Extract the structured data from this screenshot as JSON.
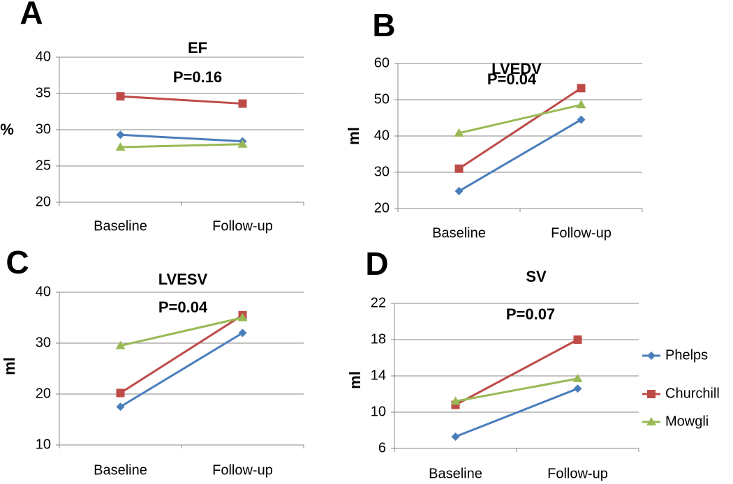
{
  "chart_data": [
    {
      "type": "line",
      "panel": "A",
      "title": "EF",
      "annotation": "P=0.16",
      "ylabel": "%",
      "categories": [
        "Baseline",
        "Follow-up"
      ],
      "ylim": [
        20,
        40
      ],
      "yticks": [
        20,
        25,
        30,
        35,
        40
      ],
      "grid": true,
      "series": [
        {
          "color": "#4a7ebb",
          "marker": "diamond",
          "values": [
            29.3,
            28.4
          ]
        },
        {
          "color": "#be4b48",
          "marker": "square",
          "values": [
            34.6,
            33.6
          ]
        },
        {
          "color": "#98b954",
          "marker": "triangle",
          "values": [
            27.6,
            28.0
          ]
        }
      ]
    },
    {
      "type": "line",
      "panel": "B",
      "title": "LVEDV",
      "annotation": "P=0.04",
      "ylabel": "ml",
      "categories": [
        "Baseline",
        "Follow-up"
      ],
      "ylim": [
        20,
        60
      ],
      "yticks": [
        20,
        30,
        40,
        50,
        60
      ],
      "grid": true,
      "series": [
        {
          "color": "#4a7ebb",
          "marker": "diamond",
          "values": [
            24.8,
            44.5
          ]
        },
        {
          "color": "#be4b48",
          "marker": "square",
          "values": [
            31,
            53.2
          ]
        },
        {
          "color": "#98b954",
          "marker": "triangle",
          "values": [
            40.8,
            48.6
          ]
        }
      ]
    },
    {
      "type": "line",
      "panel": "C",
      "title": "LVESV",
      "annotation": "P=0.04",
      "ylabel": "ml",
      "categories": [
        "Baseline",
        "Follow-up"
      ],
      "ylim": [
        10,
        40
      ],
      "yticks": [
        10,
        20,
        30,
        40
      ],
      "grid": true,
      "series": [
        {
          "color": "#4a7ebb",
          "marker": "diamond",
          "values": [
            17.5,
            32
          ]
        },
        {
          "color": "#be4b48",
          "marker": "square",
          "values": [
            20.2,
            35.5
          ]
        },
        {
          "color": "#98b954",
          "marker": "triangle",
          "values": [
            29.5,
            35
          ]
        }
      ]
    },
    {
      "type": "line",
      "panel": "D",
      "title": "SV",
      "annotation": "P=0.07",
      "ylabel": "ml",
      "categories": [
        "Baseline",
        "Follow-up"
      ],
      "ylim": [
        6,
        22
      ],
      "yticks": [
        6,
        10,
        14,
        18,
        22
      ],
      "grid": true,
      "series": [
        {
          "name": "Phelps",
          "color": "#4a7ebb",
          "marker": "diamond",
          "values": [
            7.3,
            12.6
          ]
        },
        {
          "name": "Churchill",
          "color": "#be4b48",
          "marker": "square",
          "values": [
            10.8,
            18
          ]
        },
        {
          "name": "Mowgli",
          "color": "#98b954",
          "marker": "triangle",
          "values": [
            11.2,
            13.7
          ]
        }
      ]
    }
  ]
}
